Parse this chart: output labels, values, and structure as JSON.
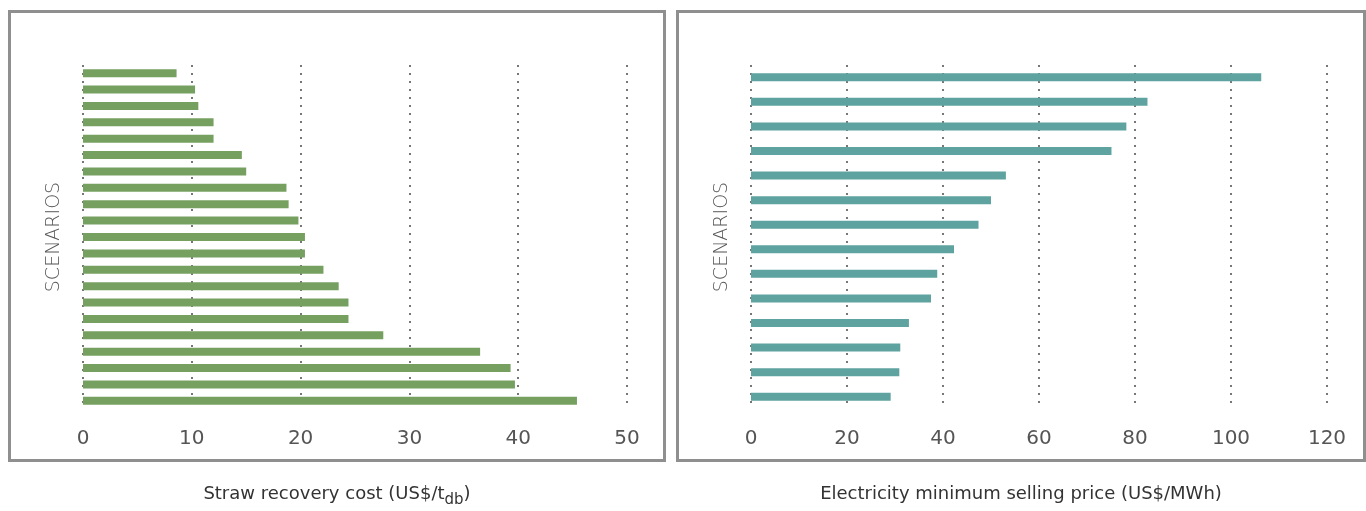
{
  "chart_data": [
    {
      "type": "bar",
      "orientation": "horizontal",
      "xlabel": "Straw recovery cost (US$/t$_{db}$)",
      "ylabel": "SCENARIOS",
      "categories": [
        null,
        null,
        null,
        null,
        null,
        null,
        null,
        null,
        null,
        null,
        null,
        null,
        null,
        null,
        null,
        null,
        null,
        null,
        null,
        null,
        null
      ],
      "values": [
        8.6,
        10.3,
        10.6,
        12.0,
        12.0,
        14.6,
        15.0,
        18.7,
        18.9,
        19.8,
        20.4,
        20.4,
        22.1,
        23.5,
        24.4,
        24.4,
        27.6,
        36.5,
        39.3,
        39.7,
        45.4
      ],
      "color": "#76a060",
      "xlim": [
        0,
        50
      ],
      "xticks": [
        0,
        10,
        20,
        30,
        40,
        50
      ],
      "grid": "x",
      "tick_labels": "x"
    },
    {
      "type": "bar",
      "orientation": "horizontal",
      "xlabel": "Electricity minimum selling price (US$/MWh)",
      "ylabel": "SCENARIOS",
      "categories": [
        null,
        null,
        null,
        null,
        null,
        null,
        null,
        null,
        null,
        null,
        null,
        null,
        null,
        null
      ],
      "values": [
        106.3,
        82.6,
        78.2,
        75.1,
        53.1,
        50.0,
        47.4,
        42.3,
        38.8,
        37.5,
        32.9,
        31.1,
        30.9,
        29.1
      ],
      "color": "#5ea39f",
      "xlim": [
        0,
        120
      ],
      "xticks": [
        0,
        20,
        40,
        60,
        80,
        100,
        120
      ],
      "grid": "x",
      "tick_labels": "x"
    }
  ]
}
